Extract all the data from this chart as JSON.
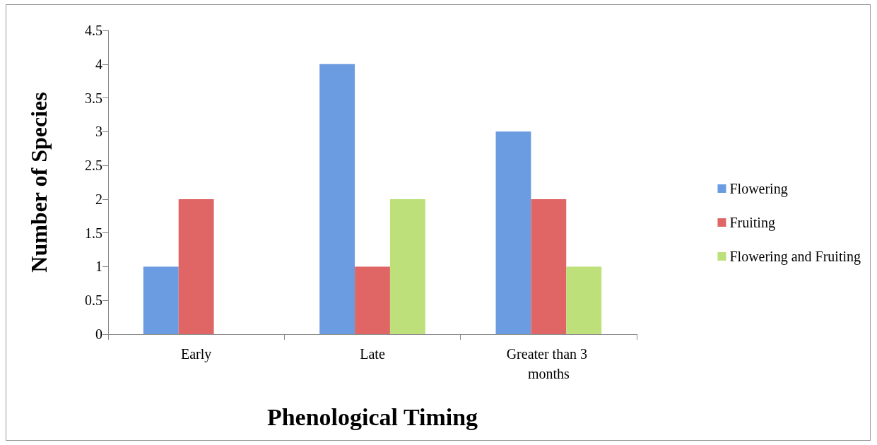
{
  "chart_data": {
    "type": "bar",
    "xlabel": "Phenological Timing",
    "ylabel": "Number of Species",
    "categories": [
      "Early",
      "Late",
      "Greater than 3 months"
    ],
    "series": [
      {
        "name": "Flowering",
        "color": "#6b9be0",
        "values": [
          1,
          4,
          3
        ]
      },
      {
        "name": "Fruiting",
        "color": "#e06666",
        "values": [
          2,
          1,
          2
        ]
      },
      {
        "name": "Flowering and Fruiting",
        "color": "#bde07a",
        "values": [
          null,
          2,
          1
        ]
      }
    ],
    "ylim": [
      0,
      4.5
    ],
    "yticks": [
      0,
      0.5,
      1,
      1.5,
      2,
      2.5,
      3,
      3.5,
      4,
      4.5
    ],
    "grid": false,
    "legend": "right"
  }
}
